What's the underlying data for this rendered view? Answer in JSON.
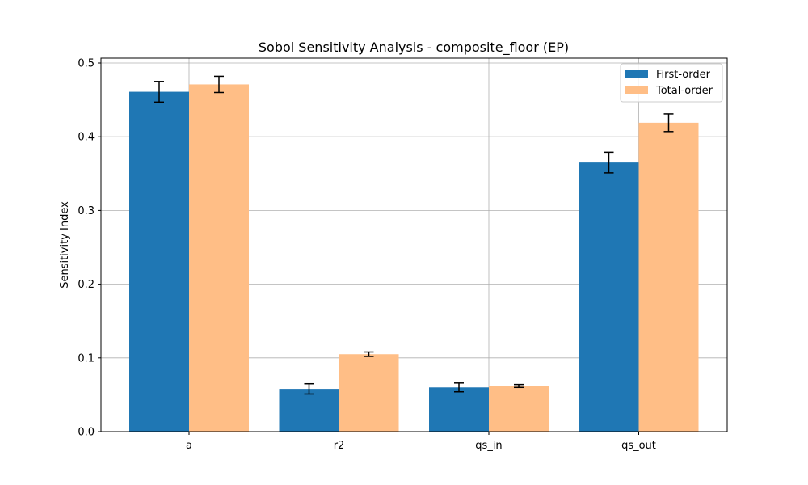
{
  "chart_data": {
    "type": "bar",
    "title": "Sobol Sensitivity Analysis - composite_floor (EP)",
    "xlabel": "",
    "ylabel": "Sensitivity Index",
    "categories": [
      "a",
      "r2",
      "qs_in",
      "qs_out"
    ],
    "ylim": [
      0,
      0.5
    ],
    "yticks": [
      0.0,
      0.1,
      0.2,
      0.3,
      0.4,
      0.5
    ],
    "ytick_labels": [
      "0.0",
      "0.1",
      "0.2",
      "0.3",
      "0.4",
      "0.5"
    ],
    "grid": true,
    "legend_position": "top-right",
    "series": [
      {
        "name": "First-order",
        "color": "#1f77b4",
        "values": [
          0.461,
          0.058,
          0.06,
          0.365
        ],
        "errors": [
          0.014,
          0.007,
          0.006,
          0.014
        ]
      },
      {
        "name": "Total-order",
        "color": "#ffbe86",
        "values": [
          0.471,
          0.105,
          0.062,
          0.419
        ],
        "errors": [
          0.011,
          0.003,
          0.002,
          0.012
        ]
      }
    ]
  }
}
